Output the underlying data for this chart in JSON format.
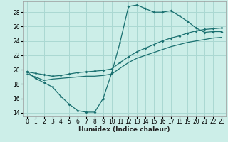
{
  "xlabel": "Humidex (Indice chaleur)",
  "ylabel": "",
  "bg_color": "#cceee8",
  "grid_color": "#aad8d2",
  "line_color": "#1a7070",
  "xlim": [
    -0.5,
    23.5
  ],
  "ylim": [
    13.5,
    29.5
  ],
  "xticks": [
    0,
    1,
    2,
    3,
    4,
    5,
    6,
    7,
    8,
    9,
    10,
    11,
    12,
    13,
    14,
    15,
    16,
    17,
    18,
    19,
    20,
    21,
    22,
    23
  ],
  "yticks": [
    14,
    16,
    18,
    20,
    22,
    24,
    26,
    28
  ],
  "line1_x": [
    0,
    1,
    2,
    3,
    4,
    5,
    6,
    7,
    8,
    9,
    10,
    11,
    12,
    13,
    14,
    15,
    16,
    17,
    18,
    19,
    20,
    21,
    22,
    23
  ],
  "line1_y": [
    19.7,
    18.8,
    18.2,
    17.6,
    16.3,
    15.2,
    14.3,
    14.1,
    14.1,
    16.0,
    19.5,
    23.8,
    28.8,
    29.0,
    28.5,
    28.0,
    28.0,
    28.2,
    27.5,
    26.7,
    25.8,
    25.2,
    25.3,
    25.3
  ],
  "line2_x": [
    0,
    1,
    2,
    3,
    4,
    5,
    6,
    7,
    8,
    9,
    10,
    11,
    12,
    13,
    14,
    15,
    16,
    17,
    18,
    19,
    20,
    21,
    22,
    23
  ],
  "line2_y": [
    19.7,
    19.5,
    19.3,
    19.1,
    19.2,
    19.4,
    19.6,
    19.7,
    19.8,
    19.9,
    20.1,
    21.0,
    21.8,
    22.5,
    23.0,
    23.5,
    24.0,
    24.4,
    24.7,
    25.1,
    25.4,
    25.6,
    25.7,
    25.8
  ],
  "line3_x": [
    0,
    1,
    2,
    3,
    4,
    5,
    6,
    7,
    8,
    9,
    10,
    11,
    12,
    13,
    14,
    15,
    16,
    17,
    18,
    19,
    20,
    21,
    22,
    23
  ],
  "line3_y": [
    19.4,
    19.0,
    18.5,
    18.7,
    18.8,
    18.9,
    19.0,
    19.1,
    19.1,
    19.2,
    19.4,
    20.2,
    21.0,
    21.6,
    22.0,
    22.4,
    22.8,
    23.2,
    23.5,
    23.8,
    24.0,
    24.2,
    24.4,
    24.5
  ],
  "tick_fontsize": 5.5,
  "xlabel_fontsize": 6.5
}
